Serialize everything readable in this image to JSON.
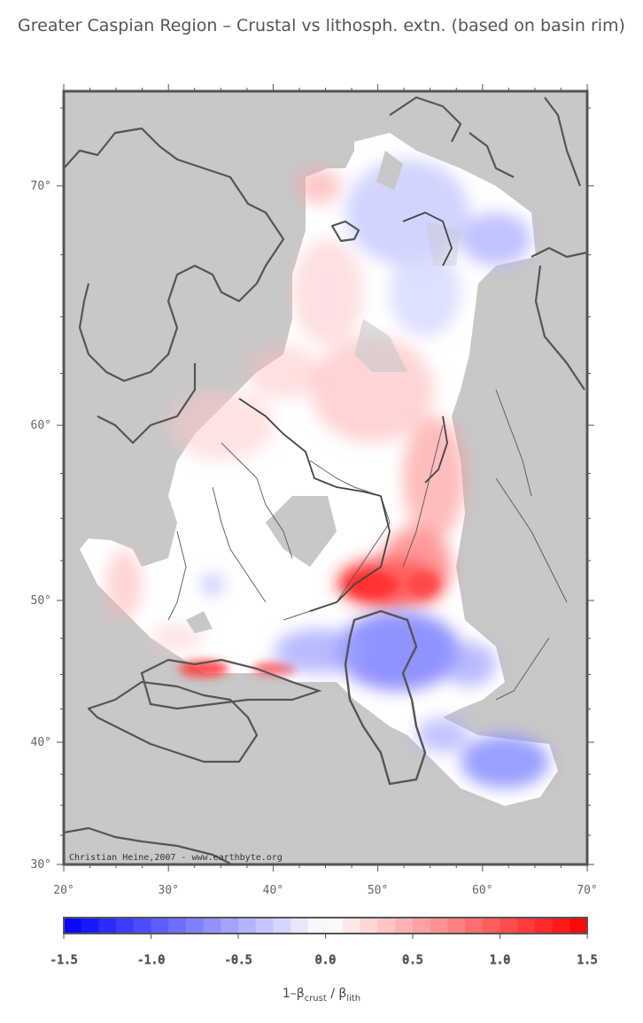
{
  "title": "Greater Caspian Region – Crustal vs lithosph. extn. (based on basin rim)",
  "credit": "Christian Heine,2007 - www.earthbyte.org",
  "map": {
    "lon_min": 20,
    "lon_max": 70,
    "lat_min": 30,
    "lat_max": 73,
    "lon_ticks": [
      "20°",
      "30°",
      "40°",
      "50°",
      "60°",
      "70°"
    ],
    "lat_ticks": [
      {
        "lat": 70,
        "label": "70°"
      },
      {
        "lat": 60,
        "label": "60°"
      },
      {
        "lat": 50,
        "label": "50°"
      },
      {
        "lat": 40,
        "label": "40°"
      },
      {
        "lat": 30,
        "label": "30°"
      }
    ],
    "land_color": "#c8c8c8",
    "coast_color": "#555555"
  },
  "colorbar": {
    "ticks": [
      "-1.5",
      "-1.0",
      "-0.5",
      "0.0",
      "0.5",
      "1.0",
      "1.5"
    ],
    "min": -1.5,
    "max": 1.5,
    "step": 0.1,
    "low_color": "#0000ff",
    "mid_color": "#ffffff",
    "high_color": "#ff0000"
  },
  "colorbar_label": {
    "prefix": "1–β",
    "sub1": "crust",
    "mid": " / β",
    "sub2": "lith"
  }
}
